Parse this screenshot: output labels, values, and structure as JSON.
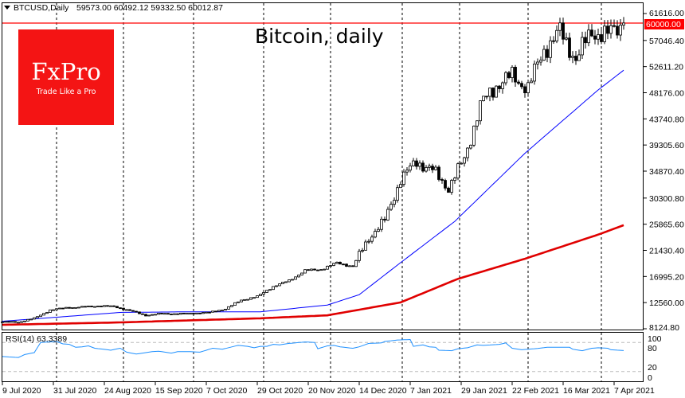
{
  "header": {
    "symbol": "BTCUSD,Daily",
    "ohlc": "59573.00 60492.12 59332.50 60012.87"
  },
  "logo": {
    "brand": "FxPro",
    "tagline": "Trade Like a Pro",
    "color": "#f41414"
  },
  "chart_data": {
    "type": "candlestick",
    "title": "Bitcoin, daily",
    "symbol": "BTCUSD",
    "timeframe": "Daily",
    "bar_count": 196,
    "ylim": [
      8124.8,
      61616.0
    ],
    "y_ticks": [
      "61616.00",
      "57046.40",
      "52611.20",
      "48176.00",
      "43740.80",
      "39305.60",
      "34870.40",
      "30300.80",
      "25865.60",
      "21430.40",
      "16995.20",
      "12560.00",
      "8124.80"
    ],
    "x_ticks": [
      {
        "bar": 0,
        "label": "9 Jul 2020"
      },
      {
        "bar": 16,
        "label": "31 Jul 2020"
      },
      {
        "bar": 32,
        "label": "24 Aug 2020"
      },
      {
        "bar": 48,
        "label": "15 Sep 2020"
      },
      {
        "bar": 64,
        "label": "7 Oct 2020"
      },
      {
        "bar": 80,
        "label": "29 Oct 2020"
      },
      {
        "bar": 96,
        "label": "20 Nov 2020"
      },
      {
        "bar": 112,
        "label": "14 Dec 2020"
      },
      {
        "bar": 128,
        "label": "7 Jan 2021"
      },
      {
        "bar": 144,
        "label": "29 Jan 2021"
      },
      {
        "bar": 160,
        "label": "22 Feb 2021"
      },
      {
        "bar": 176,
        "label": "16 Mar 2021"
      },
      {
        "bar": 192,
        "label": "7 Apr 2021"
      }
    ],
    "separator_bars": [
      17,
      38,
      60,
      82,
      103,
      125.5,
      143.5,
      165,
      188
    ],
    "weekly_close_anchors": {
      "bar_step": 5,
      "values": [
        9300,
        9250,
        9900,
        11300,
        11700,
        11800,
        12000,
        11900,
        11200,
        10400,
        10700,
        10650,
        10750,
        10900,
        11500,
        13000,
        13600,
        15300,
        16300,
        18000,
        18200,
        19300,
        18700,
        23500,
        26500,
        33500,
        36500,
        35000,
        32000,
        37000,
        46000,
        49500,
        51000,
        49000,
        55500,
        58500,
        54000,
        58500,
        58000,
        60012.87
      ]
    },
    "horizontal_level": {
      "value": 60000.0,
      "label": "60000.00",
      "color": "#ff0000"
    },
    "moving_averages": [
      {
        "name": "MA fast",
        "color": "#0000ff",
        "points": [
          [
            0,
            9400
          ],
          [
            37,
            10900
          ],
          [
            59,
            11000
          ],
          [
            81,
            11000
          ],
          [
            102,
            12150
          ],
          [
            112,
            13900
          ],
          [
            125,
            19350
          ],
          [
            142,
            26350
          ],
          [
            148,
            29500
          ],
          [
            164,
            37900
          ],
          [
            187,
            48650
          ],
          [
            195,
            52000
          ]
        ]
      },
      {
        "name": "MA slow",
        "color": "#e00000",
        "points": [
          [
            0,
            8800
          ],
          [
            37,
            9200
          ],
          [
            81,
            9900
          ],
          [
            102,
            10400
          ],
          [
            125,
            12600
          ],
          [
            143,
            16600
          ],
          [
            164,
            20000
          ],
          [
            187,
            24100
          ],
          [
            195,
            25700
          ]
        ]
      }
    ],
    "rsi": {
      "label": "RSI(14) 63.3389",
      "period": 14,
      "last": 63.3389,
      "levels": [
        80,
        20
      ],
      "scale_labels": [
        "100",
        "80",
        "20",
        "0"
      ],
      "color": "#1e90ff",
      "points": [
        [
          0,
          51
        ],
        [
          5,
          49
        ],
        [
          7,
          55
        ],
        [
          10,
          59
        ],
        [
          12,
          80
        ],
        [
          17,
          82
        ],
        [
          19,
          77
        ],
        [
          21,
          76
        ],
        [
          23,
          70
        ],
        [
          25,
          71
        ],
        [
          27,
          73
        ],
        [
          29,
          68
        ],
        [
          33,
          65
        ],
        [
          34,
          64
        ],
        [
          37,
          68
        ],
        [
          39,
          60
        ],
        [
          42,
          56
        ],
        [
          44,
          58
        ],
        [
          47,
          61
        ],
        [
          49,
          62
        ],
        [
          53,
          58
        ],
        [
          55,
          61
        ],
        [
          59,
          61
        ],
        [
          62,
          60
        ],
        [
          66,
          68
        ],
        [
          69,
          66
        ],
        [
          74,
          74
        ],
        [
          77,
          72
        ],
        [
          79,
          69
        ],
        [
          81,
          72
        ],
        [
          83,
          72
        ],
        [
          85,
          76
        ],
        [
          87,
          75
        ],
        [
          90,
          78
        ],
        [
          95,
          81
        ],
        [
          98,
          80
        ],
        [
          99,
          67
        ],
        [
          102,
          73
        ],
        [
          104,
          74
        ],
        [
          106,
          71
        ],
        [
          110,
          68
        ],
        [
          112,
          71
        ],
        [
          115,
          78
        ],
        [
          119,
          79
        ],
        [
          120,
          82
        ],
        [
          124,
          85
        ],
        [
          128,
          86
        ],
        [
          129,
          72
        ],
        [
          132,
          75
        ],
        [
          134,
          71
        ],
        [
          136,
          70
        ],
        [
          137,
          64
        ],
        [
          141,
          63
        ],
        [
          143,
          67
        ],
        [
          146,
          69
        ],
        [
          149,
          75
        ],
        [
          151,
          74
        ],
        [
          156,
          76
        ],
        [
          158,
          79
        ],
        [
          160,
          68
        ],
        [
          163,
          65
        ],
        [
          167,
          67
        ],
        [
          171,
          70
        ],
        [
          174,
          70
        ],
        [
          178,
          70
        ],
        [
          179,
          66
        ],
        [
          182,
          63
        ],
        [
          185,
          68
        ],
        [
          187,
          69
        ],
        [
          190,
          68
        ],
        [
          191,
          65
        ],
        [
          195,
          63.3389
        ]
      ]
    }
  }
}
